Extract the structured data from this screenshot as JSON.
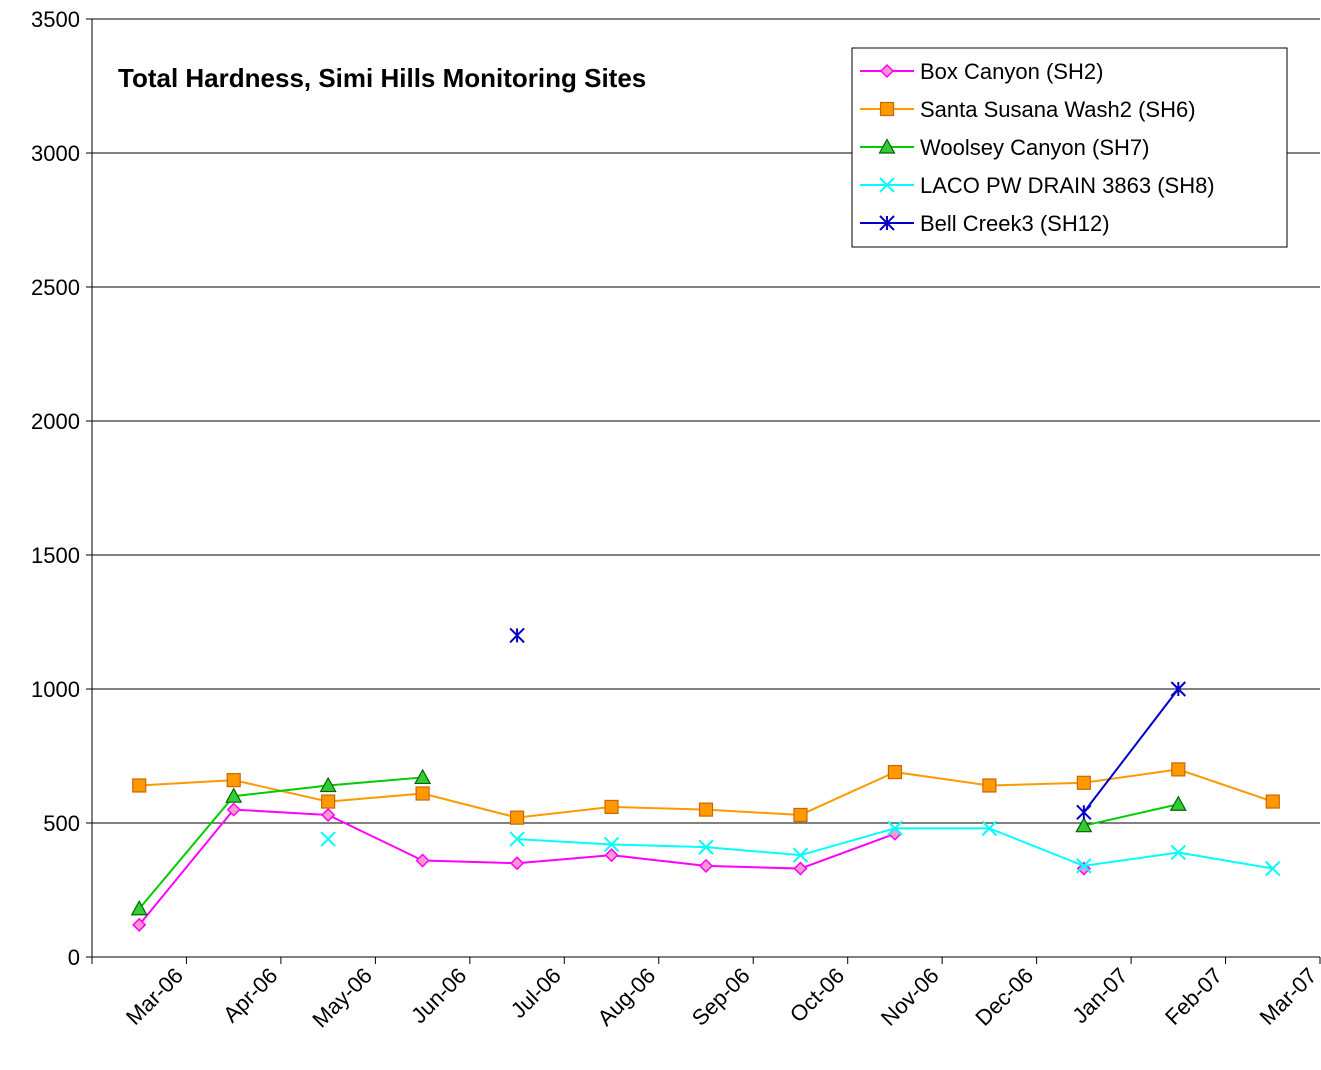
{
  "chart_data": {
    "type": "line",
    "title": "Total Hardness, Simi Hills Monitoring Sites",
    "xlabel": "",
    "ylabel": "",
    "categories": [
      "Mar-06",
      "Apr-06",
      "May-06",
      "Jun-06",
      "Jul-06",
      "Aug-06",
      "Sep-06",
      "Oct-06",
      "Nov-06",
      "Dec-06",
      "Jan-07",
      "Feb-07",
      "Mar-07"
    ],
    "ylim": [
      0,
      3500
    ],
    "yticks": [
      0,
      500,
      1000,
      1500,
      2000,
      2500,
      3000,
      3500
    ],
    "ytick_labels": [
      "0",
      "500",
      "1000",
      "1500",
      "2000",
      "2500",
      "3000",
      "3500"
    ],
    "grid": "horizontal",
    "legend_position": "top-right",
    "series": [
      {
        "name": "Box Canyon (SH2)",
        "color": "#ff00ff",
        "marker": "diamond",
        "values": [
          120,
          550,
          530,
          360,
          350,
          380,
          340,
          330,
          460,
          null,
          330,
          null,
          null
        ]
      },
      {
        "name": "Santa Susana Wash2 (SH6)",
        "color": "#ff9900",
        "marker": "square",
        "values": [
          640,
          660,
          580,
          610,
          520,
          560,
          550,
          530,
          690,
          640,
          650,
          700,
          580
        ]
      },
      {
        "name": "Woolsey Canyon (SH7)",
        "color": "#00cc00",
        "marker": "triangle",
        "values": [
          180,
          600,
          640,
          670,
          null,
          null,
          null,
          null,
          null,
          null,
          490,
          570,
          null
        ]
      },
      {
        "name": "LACO PW DRAIN 3863 (SH8)",
        "color": "#00ffff",
        "marker": "x",
        "values": [
          null,
          null,
          440,
          null,
          440,
          420,
          410,
          380,
          480,
          480,
          340,
          390,
          330
        ]
      },
      {
        "name": "Bell Creek3 (SH12)",
        "color": "#0000cc",
        "marker": "asterisk",
        "values": [
          null,
          null,
          null,
          null,
          1200,
          null,
          null,
          null,
          null,
          null,
          540,
          1000,
          null
        ]
      }
    ]
  }
}
